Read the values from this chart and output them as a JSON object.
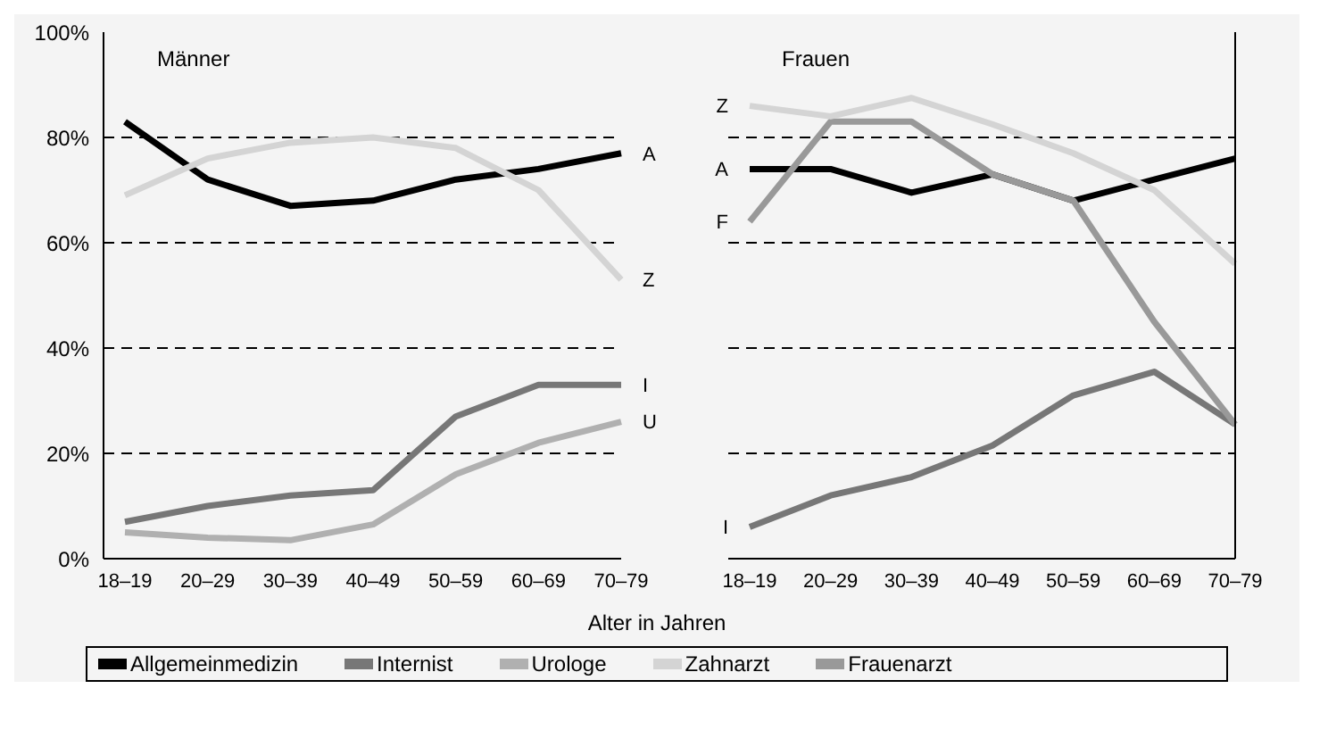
{
  "chart_data": [
    {
      "type": "line",
      "title": "Männer",
      "xlabel": "Alter in Jahren",
      "categories": [
        "18–19",
        "20–29",
        "30–39",
        "40–49",
        "50–59",
        "60–69",
        "70–79"
      ],
      "series": [
        {
          "name": "Allgemeinmedizin",
          "color": "#000000",
          "values": [
            83,
            72,
            67,
            68,
            72,
            74,
            77
          ]
        },
        {
          "name": "Internist",
          "color": "#777777",
          "values": [
            7,
            10,
            12,
            13,
            27,
            33,
            33
          ]
        },
        {
          "name": "Urologe",
          "color": "#b0b0b0",
          "values": [
            5,
            4,
            3.5,
            6.5,
            16,
            22,
            26
          ]
        },
        {
          "name": "Zahnarzt",
          "color": "#d4d4d4",
          "values": [
            69,
            76,
            79,
            80,
            78,
            70,
            53
          ]
        }
      ],
      "ylim": [
        0,
        100
      ],
      "yticks": [
        {
          "value": 0,
          "label": "0%"
        },
        {
          "value": 20,
          "label": "20%"
        },
        {
          "value": 40,
          "label": "40%"
        },
        {
          "value": 60,
          "label": "60%"
        },
        {
          "value": 80,
          "label": "80%"
        },
        {
          "value": 100,
          "label": "100%"
        }
      ],
      "grid": "y",
      "line_style": "solid",
      "marker": "none",
      "legend": "bottom",
      "annotations": [
        {
          "text": "A",
          "x": "70–79",
          "y": 77
        },
        {
          "text": "Z",
          "x": "70–79",
          "y": 53
        },
        {
          "text": "I",
          "x": "70–79",
          "y": 33
        },
        {
          "text": "U",
          "x": "70–79",
          "y": 26
        }
      ]
    },
    {
      "type": "line",
      "title": "Frauen",
      "categories": [
        "18–19",
        "20–29",
        "30–39",
        "40–49",
        "50–59",
        "60–69",
        "70–79"
      ],
      "series": [
        {
          "name": "Allgemeinmedizin",
          "color": "#000000",
          "values": [
            74,
            74,
            69.5,
            73,
            68,
            72,
            76
          ]
        },
        {
          "name": "Internist",
          "color": "#777777",
          "values": [
            6,
            12,
            15.5,
            21.5,
            31,
            35.5,
            25.5
          ]
        },
        {
          "name": "Frauenarzt",
          "color": "#999999",
          "values": [
            64,
            83,
            83,
            73,
            68,
            45,
            25.5
          ]
        },
        {
          "name": "Zahnarzt",
          "color": "#d4d4d4",
          "values": [
            86,
            84,
            87.5,
            82.5,
            77,
            70,
            56
          ]
        }
      ],
      "ylim": [
        0,
        100
      ],
      "yticks": [
        0,
        20,
        40,
        60,
        80,
        100
      ],
      "grid": "y",
      "line_style": "solid",
      "marker": "none",
      "legend": "bottom",
      "tick_labels": "x",
      "annotations": [
        {
          "text": "Z",
          "x": "18–19",
          "y": 86
        },
        {
          "text": "A",
          "x": "18–19",
          "y": 74
        },
        {
          "text": "F",
          "x": "18–19",
          "y": 64
        },
        {
          "text": "I",
          "x": "18–19",
          "y": 6
        }
      ]
    }
  ]
}
